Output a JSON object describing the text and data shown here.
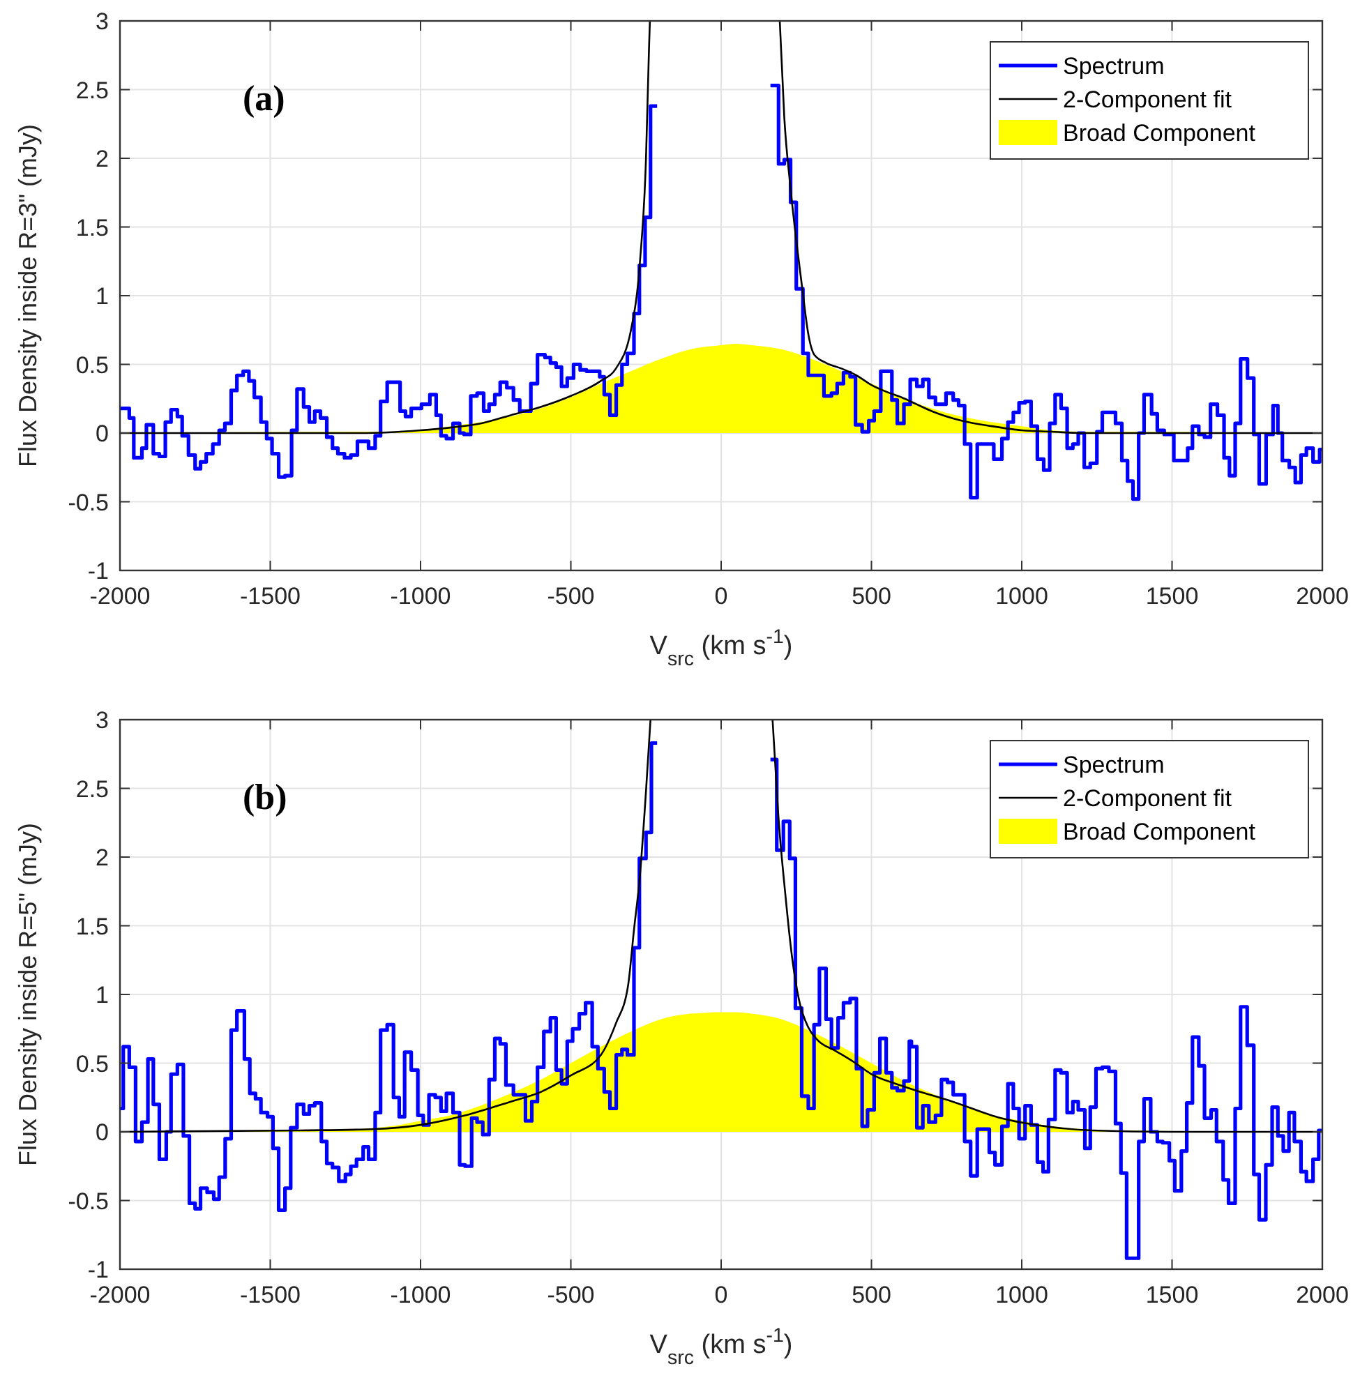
{
  "chart_data": [
    {
      "type": "line",
      "annotations": [
        "(a)"
      ],
      "xlabel": "V$_{src}$ (km s$^{-1}$)",
      "ylabel": "Flux Density inside R=3\" (mJy)",
      "xlim": [
        -2000,
        2000
      ],
      "xticks": [
        -2000,
        -1500,
        -1000,
        -500,
        0,
        500,
        1000,
        1500,
        2000
      ],
      "ylim": [
        -1,
        3
      ],
      "yticks": [
        -1,
        -0.5,
        0,
        0.5,
        1,
        1.5,
        2,
        2.5,
        3
      ],
      "grid": true,
      "legend": "top right",
      "series": [
        {
          "name": "Spectrum",
          "type": "step",
          "color": "#0000ff",
          "x": [
            -2000,
            -1969,
            -1954,
            -1927,
            -1912,
            -1889,
            -1869,
            -1849,
            -1830,
            -1809,
            -1793,
            -1772,
            -1750,
            -1732,
            -1713,
            -1691,
            -1670,
            -1651,
            -1630,
            -1611,
            -1590,
            -1571,
            -1553,
            -1531,
            -1512,
            -1494,
            -1472,
            -1451,
            -1429,
            -1411,
            -1389,
            -1370,
            -1352,
            -1333,
            -1312,
            -1293,
            -1275,
            -1253,
            -1232,
            -1210,
            -1173,
            -1151,
            -1133,
            -1111,
            -1068,
            -1050,
            -1031,
            -997,
            -969,
            -948,
            -932,
            -914,
            -892,
            -870,
            -855,
            -833,
            -812,
            -790,
            -772,
            -753,
            -735,
            -713,
            -691,
            -670,
            -633,
            -611,
            -586,
            -568,
            -549,
            -531,
            -512,
            -491,
            -469,
            -448,
            -426,
            -404,
            -389,
            -370,
            -349,
            -330,
            -312,
            -290,
            -272,
            -253,
            -235,
            -213,
            164,
            191,
            210,
            231,
            250,
            272,
            290,
            342,
            367,
            386,
            407,
            429,
            447,
            469,
            491,
            509,
            531,
            546,
            568,
            586,
            608,
            629,
            651,
            671,
            691,
            713,
            748,
            772,
            790,
            810,
            830,
            852,
            907,
            934,
            954,
            972,
            991,
            1011,
            1031,
            1052,
            1073,
            1093,
            1111,
            1131,
            1151,
            1170,
            1188,
            1208,
            1228,
            1250,
            1268,
            1312,
            1333,
            1352,
            1370,
            1389,
            1407,
            1432,
            1451,
            1474,
            1506,
            1552,
            1568,
            1589,
            1608,
            1628,
            1651,
            1673,
            1691,
            1710,
            1728,
            1751,
            1772,
            1790,
            1813,
            1836,
            1852,
            1867,
            1890,
            1910,
            1929,
            1947,
            1969,
            1991,
            2000
          ],
          "values": [
            0.18,
            0.11,
            -0.18,
            -0.11,
            0.06,
            -0.15,
            -0.17,
            0.08,
            0.17,
            0.12,
            -0.02,
            -0.16,
            -0.26,
            -0.21,
            -0.15,
            -0.08,
            0.02,
            0.07,
            0.31,
            0.42,
            0.45,
            0.38,
            0.26,
            0.08,
            -0.04,
            -0.15,
            -0.32,
            -0.31,
            0.02,
            0.32,
            0.19,
            0.08,
            0.16,
            0.11,
            -0.03,
            -0.11,
            -0.15,
            -0.18,
            -0.16,
            -0.06,
            -0.11,
            -0.02,
            0.23,
            0.37,
            0.16,
            0.12,
            0.18,
            0.21,
            0.28,
            0.13,
            -0.02,
            -0.04,
            0.07,
            0.0,
            -0.01,
            0.27,
            0.29,
            0.16,
            0.21,
            0.28,
            0.37,
            0.33,
            0.24,
            0.16,
            0.36,
            0.57,
            0.55,
            0.51,
            0.48,
            0.34,
            0.4,
            0.5,
            0.46,
            0.45,
            0.45,
            0.41,
            0.28,
            0.13,
            0.35,
            0.5,
            0.58,
            0.87,
            1.22,
            1.57,
            2.38,
            null,
            2.53,
            1.96,
            1.99,
            1.68,
            1.05,
            0.58,
            0.42,
            0.27,
            0.29,
            0.36,
            0.44,
            0.41,
            0.06,
            0.01,
            0.09,
            0.16,
            0.45,
            0.45,
            0.24,
            0.07,
            0.21,
            0.39,
            0.34,
            0.39,
            0.26,
            0.21,
            0.29,
            0.24,
            0.2,
            -0.08,
            -0.47,
            -0.08,
            -0.19,
            -0.04,
            0.08,
            0.15,
            0.22,
            0.23,
            0.05,
            -0.19,
            -0.27,
            0.07,
            0.28,
            0.18,
            -0.11,
            -0.08,
            0.0,
            -0.25,
            -0.22,
            0.01,
            0.15,
            0.07,
            -0.2,
            -0.35,
            -0.48,
            0.0,
            0.28,
            0.14,
            0.02,
            -0.01,
            -0.2,
            -0.11,
            0.05,
            -0.01,
            -0.03,
            0.21,
            0.13,
            -0.18,
            -0.31,
            0.07,
            0.54,
            0.4,
            -0.01,
            -0.37,
            -0.01,
            0.2,
            0.0,
            -0.2,
            -0.25,
            -0.36,
            -0.16,
            -0.11,
            -0.21,
            -0.12,
            -0.12
          ]
        },
        {
          "name": "2-Component fit",
          "color": "#000000",
          "x": [
            -2000,
            -1200,
            -1000,
            -900,
            -800,
            -700,
            -600,
            -500,
            -400,
            -350,
            -300,
            -270,
            -250,
            -240,
            -237,
            0,
            195,
            210,
            230,
            250,
            270,
            290,
            310,
            350,
            400,
            450,
            500,
            550,
            600,
            650,
            700,
            800,
            900,
            1000,
            1100,
            1200,
            2000
          ],
          "values": [
            0,
            0,
            0.02,
            0.04,
            0.07,
            0.13,
            0.19,
            0.27,
            0.38,
            0.47,
            0.75,
            1.25,
            2.0,
            2.8,
            3.0,
            null,
            3.0,
            2.3,
            1.8,
            1.4,
            1.05,
            0.72,
            0.57,
            0.51,
            0.47,
            0.42,
            0.35,
            0.3,
            0.26,
            0.21,
            0.16,
            0.09,
            0.05,
            0.02,
            0.01,
            0,
            0
          ]
        },
        {
          "name": "Broad Component",
          "type": "area",
          "color": "#ffff00",
          "x": [
            -2000,
            -1200,
            -1100,
            -1000,
            -900,
            -800,
            -700,
            -600,
            -500,
            -400,
            -300,
            -200,
            -100,
            0,
            50,
            100,
            200,
            300,
            400,
            500,
            600,
            700,
            800,
            900,
            1000,
            1100,
            1200,
            1300,
            2000
          ],
          "values": [
            0,
            0.01,
            0.01,
            0.02,
            0.05,
            0.08,
            0.12,
            0.18,
            0.26,
            0.36,
            0.45,
            0.54,
            0.61,
            0.64,
            0.65,
            0.64,
            0.61,
            0.54,
            0.45,
            0.36,
            0.26,
            0.18,
            0.12,
            0.08,
            0.05,
            0.02,
            0.01,
            0.01,
            0
          ]
        }
      ]
    },
    {
      "type": "line",
      "annotations": [
        "(b)"
      ],
      "xlabel": "V$_{src}$ (km s$^{-1}$)",
      "ylabel": "Flux Density inside R=5\" (mJy)",
      "xlim": [
        -2000,
        2000
      ],
      "xticks": [
        -2000,
        -1500,
        -1000,
        -500,
        0,
        500,
        1000,
        1500,
        2000
      ],
      "ylim": [
        -1,
        3
      ],
      "yticks": [
        -1,
        -0.5,
        0,
        0.5,
        1,
        1.5,
        2,
        2.5,
        3
      ],
      "grid": true,
      "legend": "top right",
      "series": [
        {
          "name": "Spectrum",
          "type": "step",
          "color": "#0000ff",
          "x": [
            -2000,
            -1989,
            -1969,
            -1948,
            -1927,
            -1907,
            -1889,
            -1869,
            -1846,
            -1830,
            -1809,
            -1789,
            -1769,
            -1750,
            -1732,
            -1710,
            -1688,
            -1670,
            -1650,
            -1630,
            -1611,
            -1586,
            -1568,
            -1549,
            -1531,
            -1509,
            -1491,
            -1472,
            -1451,
            -1432,
            -1411,
            -1389,
            -1370,
            -1352,
            -1330,
            -1312,
            -1293,
            -1272,
            -1250,
            -1232,
            -1213,
            -1191,
            -1173,
            -1151,
            -1133,
            -1111,
            -1090,
            -1071,
            -1053,
            -1031,
            -1009,
            -991,
            -972,
            -951,
            -932,
            -914,
            -892,
            -870,
            -852,
            -830,
            -812,
            -793,
            -772,
            -753,
            -735,
            -716,
            -691,
            -651,
            -630,
            -611,
            -590,
            -568,
            -549,
            -531,
            -512,
            -494,
            -472,
            -451,
            -429,
            -410,
            -389,
            -370,
            -349,
            -330,
            -312,
            -290,
            -272,
            -250,
            -232,
            -213,
            164,
            185,
            207,
            228,
            247,
            268,
            290,
            309,
            327,
            349,
            367,
            389,
            407,
            429,
            450,
            469,
            487,
            509,
            528,
            549,
            568,
            586,
            608,
            626,
            633,
            651,
            671,
            691,
            713,
            733,
            753,
            772,
            810,
            830,
            852,
            892,
            911,
            934,
            954,
            972,
            991,
            1011,
            1031,
            1052,
            1071,
            1089,
            1111,
            1130,
            1151,
            1170,
            1188,
            1210,
            1228,
            1247,
            1268,
            1290,
            1312,
            1330,
            1349,
            1389,
            1407,
            1429,
            1451,
            1469,
            1491,
            1509,
            1531,
            1549,
            1568,
            1589,
            1608,
            1630,
            1648,
            1670,
            1688,
            1710,
            1728,
            1750,
            1772,
            1790,
            1812,
            1833,
            1852,
            1870,
            1889,
            1907,
            1929,
            1947,
            1969,
            1988,
            2000
          ],
          "values": [
            0.17,
            0.62,
            0.47,
            -0.07,
            0.07,
            0.53,
            0.2,
            -0.2,
            0.0,
            0.42,
            0.49,
            -0.03,
            -0.52,
            -0.56,
            -0.41,
            -0.44,
            -0.49,
            -0.33,
            -0.05,
            0.74,
            0.88,
            0.53,
            0.28,
            0.24,
            0.14,
            0.11,
            -0.12,
            -0.57,
            -0.41,
            0.03,
            0.2,
            0.13,
            0.19,
            0.21,
            -0.07,
            -0.23,
            -0.26,
            -0.36,
            -0.31,
            -0.25,
            -0.2,
            -0.11,
            -0.2,
            0.14,
            0.74,
            0.78,
            0.25,
            0.11,
            0.58,
            0.45,
            0.12,
            0.05,
            0.27,
            0.25,
            0.15,
            0.28,
            0.14,
            -0.24,
            -0.25,
            0.1,
            0.07,
            -0.02,
            0.38,
            0.68,
            0.64,
            0.34,
            0.27,
            0.08,
            0.22,
            0.47,
            0.73,
            0.83,
            0.45,
            0.35,
            0.66,
            0.75,
            0.86,
            0.94,
            0.62,
            0.46,
            0.29,
            0.17,
            0.56,
            0.6,
            0.56,
            1.34,
            1.99,
            2.18,
            2.83,
            null,
            2.71,
            2.05,
            2.26,
            1.99,
            0.9,
            0.26,
            0.17,
            0.78,
            1.19,
            0.82,
            0.61,
            0.83,
            0.94,
            0.97,
            0.46,
            0.04,
            0.16,
            0.43,
            0.68,
            0.43,
            0.32,
            0.3,
            0.37,
            0.66,
            0.62,
            0.03,
            0.19,
            0.07,
            0.12,
            0.38,
            0.36,
            0.27,
            -0.07,
            -0.32,
            0.02,
            -0.15,
            -0.24,
            0.04,
            0.35,
            0.17,
            -0.05,
            0.19,
            0.05,
            -0.22,
            -0.29,
            0.09,
            0.45,
            0.43,
            0.14,
            0.22,
            0.16,
            -0.12,
            0.18,
            0.46,
            0.47,
            0.44,
            0.06,
            -0.3,
            -0.92,
            -0.07,
            0.24,
            0.0,
            -0.07,
            -0.08,
            -0.21,
            -0.43,
            -0.14,
            0.21,
            0.69,
            0.48,
            0.1,
            0.16,
            -0.07,
            -0.35,
            -0.52,
            0.17,
            0.91,
            0.63,
            -0.31,
            -0.64,
            -0.24,
            0.18,
            -0.03,
            -0.14,
            0.14,
            -0.07,
            -0.29,
            -0.36,
            -0.2,
            0.01,
            0.01
          ]
        },
        {
          "name": "2-Component fit",
          "color": "#000000",
          "x": [
            -2000,
            -1400,
            -1150,
            -1000,
            -850,
            -700,
            -600,
            -500,
            -400,
            -350,
            -310,
            -290,
            -270,
            -250,
            -235,
            0,
            171,
            190,
            213,
            236,
            259,
            290,
            320,
            380,
            440,
            500,
            580,
            650,
            770,
            930,
            1080,
            1235,
            1500,
            2000
          ],
          "values": [
            0,
            0.01,
            0.02,
            0.05,
            0.12,
            0.22,
            0.29,
            0.41,
            0.56,
            0.79,
            1.06,
            1.47,
            1.87,
            2.48,
            3.0,
            null,
            3.0,
            2.31,
            1.74,
            1.27,
            0.96,
            0.76,
            0.67,
            0.59,
            0.51,
            0.42,
            0.35,
            0.3,
            0.22,
            0.1,
            0.04,
            0.01,
            0,
            0
          ]
        },
        {
          "name": "Broad Component",
          "type": "area",
          "color": "#ffff00",
          "x": [
            -2000,
            -1300,
            -1200,
            -1100,
            -1000,
            -900,
            -800,
            -700,
            -600,
            -500,
            -400,
            -300,
            -200,
            -100,
            0,
            50,
            100,
            200,
            300,
            400,
            500,
            600,
            700,
            800,
            900,
            1000,
            1100,
            1200,
            1300,
            2000
          ],
          "values": [
            0,
            0.01,
            0.02,
            0.04,
            0.08,
            0.12,
            0.19,
            0.28,
            0.38,
            0.5,
            0.62,
            0.73,
            0.82,
            0.86,
            0.87,
            0.87,
            0.86,
            0.82,
            0.73,
            0.62,
            0.5,
            0.38,
            0.28,
            0.19,
            0.12,
            0.08,
            0.04,
            0.02,
            0.01,
            0
          ]
        }
      ]
    }
  ]
}
